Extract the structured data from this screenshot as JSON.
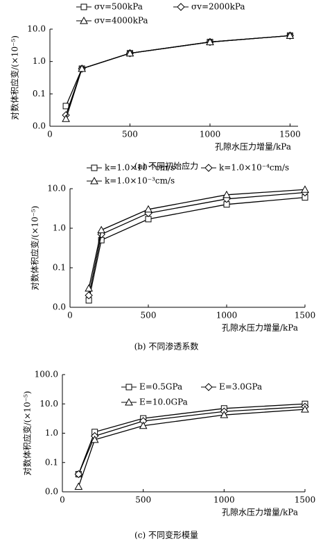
{
  "chart_data": [
    {
      "type": "line",
      "log_y": true,
      "caption": "(a) 不同初始应力",
      "xlabel": "孔隙水压力增量/kPa",
      "ylabel": "对数体积应变/(×10⁻⁵)",
      "xlim": [
        0,
        1550
      ],
      "xticks": [
        0,
        500,
        1000,
        1500
      ],
      "ylim": [
        0.01,
        10
      ],
      "yticks": [
        {
          "value": 0.01,
          "label": "0.0"
        },
        {
          "value": 0.1,
          "label": "0.1"
        },
        {
          "value": 1,
          "label": "1.0"
        },
        {
          "value": 10,
          "label": "10.0"
        }
      ],
      "x": [
        100,
        200,
        500,
        1000,
        1500
      ],
      "series": [
        {
          "name": "σv=500kPa",
          "color": "#000000",
          "marker": "square",
          "values": [
            0.042,
            0.6,
            1.8,
            4.0,
            6.3
          ]
        },
        {
          "name": "σv=2000kPa",
          "color": "#000000",
          "marker": "diamond",
          "values": [
            0.022,
            0.6,
            1.8,
            4.0,
            6.3
          ]
        },
        {
          "name": "σv=4000kPa",
          "color": "#000000",
          "marker": "triangle",
          "values": [
            0.017,
            0.6,
            1.8,
            4.0,
            6.3
          ]
        }
      ]
    },
    {
      "type": "line",
      "log_y": true,
      "caption": "(b) 不同渗透系数",
      "xlabel": "孔隙水压力增量/kPa",
      "ylabel": "对数体积应变/(×10⁻⁵)",
      "xlim": [
        0,
        1500
      ],
      "xticks": [
        0,
        500,
        1000,
        1500
      ],
      "ylim": [
        0.01,
        10
      ],
      "yticks": [
        {
          "value": 0.01,
          "label": "0.0"
        },
        {
          "value": 0.1,
          "label": "0.1"
        },
        {
          "value": 1,
          "label": "1.0"
        },
        {
          "value": 10,
          "label": "10.0"
        }
      ],
      "x": [
        120,
        200,
        500,
        1000,
        1500
      ],
      "series": [
        {
          "name": "k=1.0×10⁻⁵cm/s",
          "color": "#000000",
          "marker": "square",
          "values": [
            0.015,
            0.5,
            1.7,
            4.0,
            6.0
          ]
        },
        {
          "name": "k=1.0×10⁻⁴cm/s",
          "color": "#000000",
          "marker": "diamond",
          "values": [
            0.02,
            0.7,
            2.4,
            5.5,
            8.0
          ]
        },
        {
          "name": "k=1.0×10⁻³cm/s",
          "color": "#000000",
          "marker": "triangle",
          "values": [
            0.03,
            0.9,
            3.0,
            7.0,
            9.5
          ]
        }
      ]
    },
    {
      "type": "line",
      "log_y": true,
      "caption": "(c) 不同变形模量",
      "xlabel": "孔隙水压力增量/kPa",
      "ylabel": "对数体积应变/(×10⁻⁵)",
      "xlim": [
        0,
        1500
      ],
      "xticks": [
        0,
        500,
        1000,
        1500
      ],
      "ylim": [
        0.01,
        100
      ],
      "yticks": [
        {
          "value": 0.01,
          "label": "0.0"
        },
        {
          "value": 0.1,
          "label": "0.1"
        },
        {
          "value": 1,
          "label": "1.0"
        },
        {
          "value": 10,
          "label": "10.0"
        },
        {
          "value": 100,
          "label": "100.0"
        }
      ],
      "x": [
        100,
        200,
        500,
        1000,
        1500
      ],
      "series": [
        {
          "name": "E=0.5GPa",
          "color": "#000000",
          "marker": "square",
          "values": [
            0.04,
            1.1,
            3.2,
            7.0,
            10.0
          ]
        },
        {
          "name": "E=3.0GPa",
          "color": "#000000",
          "marker": "diamond",
          "values": [
            0.04,
            0.8,
            2.6,
            5.5,
            8.0
          ]
        },
        {
          "name": "E=10.0GPa",
          "color": "#000000",
          "marker": "triangle",
          "values": [
            0.015,
            0.6,
            1.8,
            4.2,
            6.5
          ]
        }
      ]
    }
  ]
}
